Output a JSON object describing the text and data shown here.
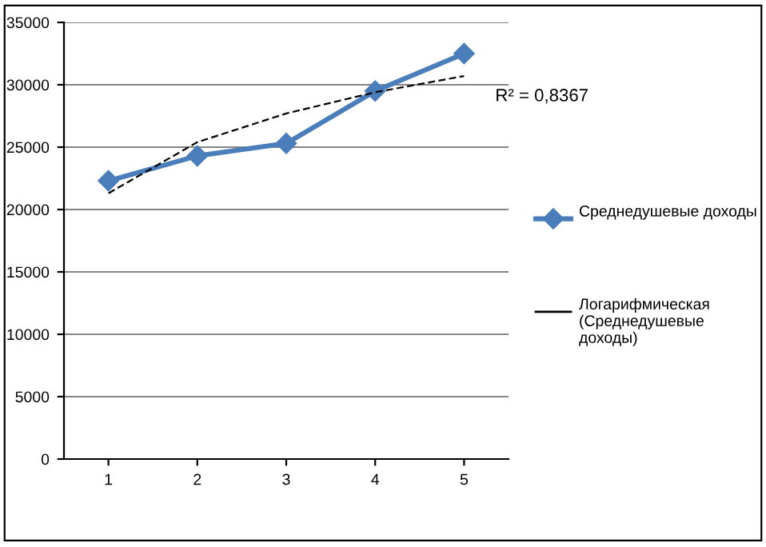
{
  "chart_data": {
    "type": "line",
    "categories": [
      "1",
      "2",
      "3",
      "4",
      "5"
    ],
    "series": [
      {
        "name": "Среднедушевые доходы",
        "color": "#4a7ebb",
        "values": [
          22300,
          24300,
          25300,
          29500,
          32500
        ],
        "marker": "diamond",
        "line_style": "solid"
      },
      {
        "name": "Логарифмическая (Среднедушевые доходы)",
        "color": "#000000",
        "type": "line",
        "x": [
          "1",
          "2",
          "3",
          "4",
          "5"
        ],
        "values": [
          21300,
          25400,
          27700,
          29400,
          30700
        ],
        "marker": "none",
        "line_style": "dashed"
      }
    ],
    "ylim": [
      0,
      35000
    ],
    "yticks": [
      0,
      5000,
      10000,
      15000,
      20000,
      25000,
      30000,
      35000
    ],
    "grid": "y",
    "legend": "right",
    "annotations": [
      "R² = 0,8367"
    ]
  }
}
